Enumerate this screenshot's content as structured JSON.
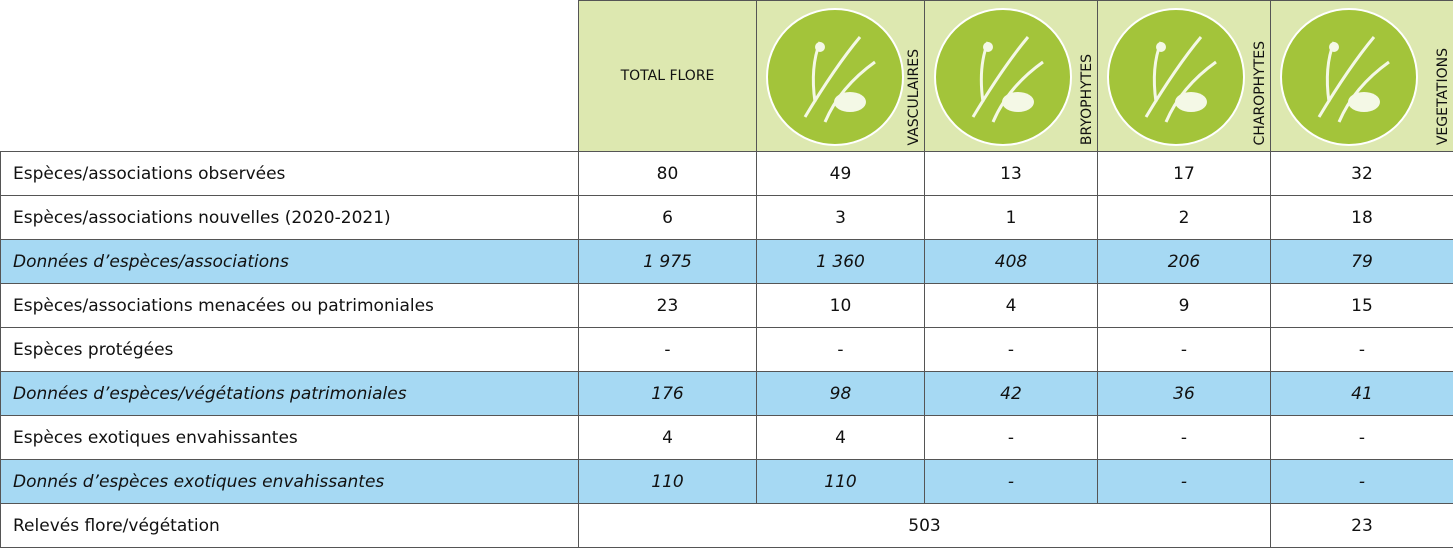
{
  "table": {
    "headers": [
      "TOTAL FLORE",
      "VASCULAIRES",
      "BRYOPHYTES",
      "CHAROPHYTES",
      "VEGETATIONS"
    ],
    "rows": [
      {
        "label": "Espèces/associations observées",
        "cells": [
          "80",
          "49",
          "13",
          "17",
          "32"
        ]
      },
      {
        "label": "Espèces/associations nouvelles (2020-2021)",
        "cells": [
          "6",
          "3",
          "1",
          "2",
          "18"
        ]
      },
      {
        "label": "Données d’espèces/associations",
        "cells": [
          "1 975",
          "1 360",
          "408",
          "206",
          "79"
        ]
      },
      {
        "label": "Espèces/associations menacées ou patrimoniales",
        "cells": [
          "23",
          "10",
          "4",
          "9",
          "15"
        ]
      },
      {
        "label": "Espèces protégées",
        "cells": [
          "-",
          "-",
          "-",
          "-",
          "-"
        ]
      },
      {
        "label": "Données d’espèces/végétations patrimoniales",
        "cells": [
          "176",
          "98",
          "42",
          "36",
          "41"
        ]
      },
      {
        "label": "Espèces exotiques envahissantes",
        "cells": [
          "4",
          "4",
          "-",
          "-",
          "-"
        ]
      },
      {
        "label": "Donnés d’espèces exotiques envahissantes",
        "cells": [
          "110",
          "110",
          "-",
          "-",
          "-"
        ]
      },
      {
        "label": "Relevés flore/végétation",
        "cells": [
          "503",
          "23"
        ]
      }
    ]
  }
}
